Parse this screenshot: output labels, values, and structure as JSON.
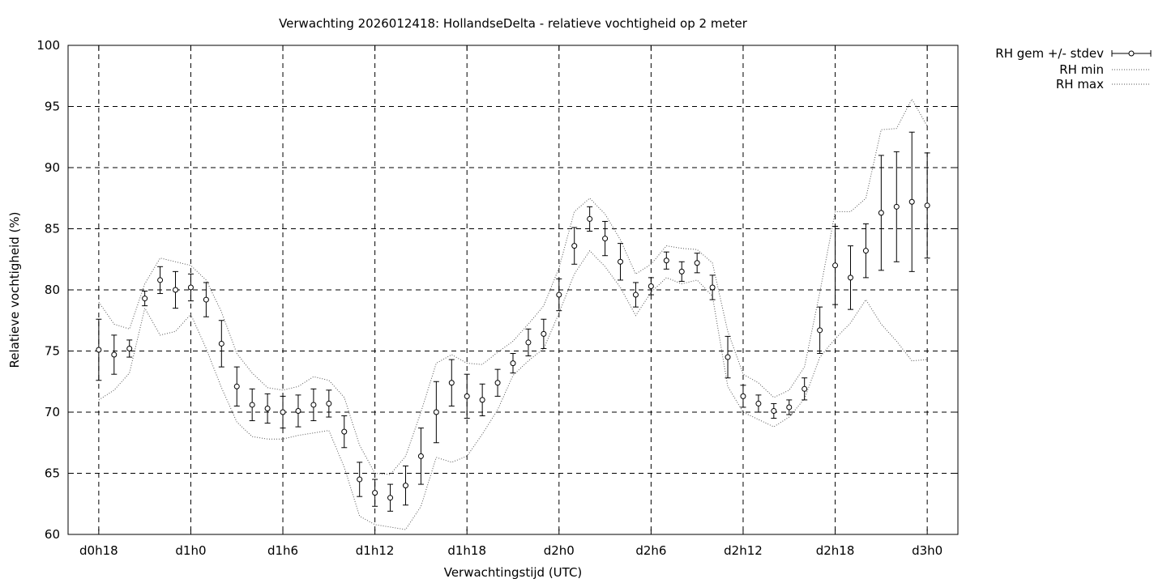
{
  "chart_data": {
    "type": "line",
    "title": "Verwachting 2026012418: HollandseDelta - relatieve vochtigheid op 2 meter",
    "xlabel": "Verwachtingstijd (UTC)",
    "ylabel": "Relatieve vochtigheid (%)",
    "ylim": [
      60,
      100
    ],
    "y_ticks": [
      60,
      65,
      70,
      75,
      80,
      85,
      90,
      95,
      100
    ],
    "x_unit": "forecast hour",
    "xlim": [
      16,
      74
    ],
    "x_ticks": [
      {
        "value": 18,
        "label": "d0h18"
      },
      {
        "value": 24,
        "label": "d1h0"
      },
      {
        "value": 30,
        "label": "d1h6"
      },
      {
        "value": 36,
        "label": "d1h12"
      },
      {
        "value": 42,
        "label": "d1h18"
      },
      {
        "value": 48,
        "label": "d2h0"
      },
      {
        "value": 54,
        "label": "d2h6"
      },
      {
        "value": 60,
        "label": "d2h12"
      },
      {
        "value": 66,
        "label": "d2h18"
      },
      {
        "value": 72,
        "label": "d3h0"
      }
    ],
    "grid": true,
    "legend_position": "top-right (outside plot)",
    "series": [
      {
        "name": "RH gem +/- stdev",
        "style": "points with error bars",
        "x": [
          18,
          19,
          20,
          21,
          22,
          23,
          24,
          25,
          26,
          27,
          28,
          29,
          30,
          31,
          32,
          33,
          34,
          35,
          36,
          37,
          38,
          39,
          40,
          41,
          42,
          43,
          44,
          45,
          46,
          47,
          48,
          49,
          50,
          51,
          52,
          53,
          54,
          55,
          56,
          57,
          58,
          59,
          60,
          61,
          62,
          63,
          64,
          65,
          66,
          67,
          68,
          69,
          70,
          71,
          72
        ],
        "mean": [
          75.1,
          74.7,
          75.2,
          79.3,
          80.8,
          80.0,
          80.2,
          79.2,
          75.6,
          72.1,
          70.6,
          70.3,
          70.0,
          70.1,
          70.6,
          70.7,
          68.4,
          64.5,
          63.4,
          63.0,
          64.0,
          66.4,
          70.0,
          72.4,
          71.3,
          71.0,
          72.4,
          74.0,
          75.7,
          76.4,
          79.6,
          83.6,
          85.8,
          84.2,
          82.3,
          79.6,
          80.3,
          82.4,
          81.5,
          82.2,
          80.2,
          74.5,
          71.3,
          70.7,
          70.1,
          70.4,
          71.9,
          76.7,
          82.0,
          81.0,
          83.2,
          86.3,
          86.8,
          87.2,
          86.9
        ],
        "stdev": [
          2.5,
          1.6,
          0.7,
          0.6,
          1.1,
          1.5,
          1.1,
          1.4,
          1.9,
          1.6,
          1.3,
          1.2,
          1.3,
          1.3,
          1.3,
          1.1,
          1.3,
          1.4,
          1.1,
          1.1,
          1.6,
          2.3,
          2.5,
          1.9,
          1.8,
          1.3,
          1.1,
          0.8,
          1.1,
          1.2,
          1.3,
          1.5,
          1.0,
          1.4,
          1.5,
          1.0,
          0.7,
          0.7,
          0.8,
          0.8,
          1.0,
          1.7,
          0.9,
          0.7,
          0.6,
          0.6,
          0.9,
          1.9,
          3.2,
          2.6,
          2.2,
          4.7,
          4.5,
          5.7,
          4.3
        ]
      },
      {
        "name": "RH min",
        "style": "dotted",
        "x": [
          18,
          19,
          20,
          21,
          22,
          23,
          24,
          25,
          26,
          27,
          28,
          29,
          30,
          31,
          32,
          33,
          34,
          35,
          36,
          37,
          38,
          39,
          40,
          41,
          42,
          43,
          44,
          45,
          46,
          47,
          48,
          49,
          50,
          51,
          52,
          53,
          54,
          55,
          56,
          57,
          58,
          59,
          60,
          61,
          62,
          63,
          64,
          65,
          66,
          67,
          68,
          69,
          70,
          71,
          72
        ],
        "values": [
          71.0,
          71.8,
          73.2,
          78.5,
          76.3,
          76.6,
          78.0,
          75.2,
          72.0,
          69.2,
          68.0,
          67.8,
          67.8,
          68.1,
          68.3,
          68.5,
          65.5,
          61.5,
          60.8,
          60.6,
          60.4,
          62.3,
          66.3,
          65.9,
          66.4,
          68.2,
          70.2,
          73.0,
          74.2,
          75.2,
          78.1,
          81.3,
          83.2,
          81.9,
          80.2,
          77.9,
          79.8,
          81.0,
          80.5,
          80.8,
          79.5,
          72.1,
          70.0,
          69.4,
          68.8,
          69.6,
          71.1,
          74.5,
          76.0,
          77.3,
          79.2,
          77.2,
          75.8,
          74.2,
          74.3
        ]
      },
      {
        "name": "RH max",
        "style": "dotted",
        "x": [
          18,
          19,
          20,
          21,
          22,
          23,
          24,
          25,
          26,
          27,
          28,
          29,
          30,
          31,
          32,
          33,
          34,
          35,
          36,
          37,
          38,
          39,
          40,
          41,
          42,
          43,
          44,
          45,
          46,
          47,
          48,
          49,
          50,
          51,
          52,
          53,
          54,
          55,
          56,
          57,
          58,
          59,
          60,
          61,
          62,
          63,
          64,
          65,
          66,
          67,
          68,
          69,
          70,
          71,
          72
        ],
        "values": [
          79.0,
          77.2,
          76.8,
          80.5,
          82.6,
          82.3,
          82.0,
          80.8,
          78.2,
          74.8,
          73.2,
          72.0,
          71.8,
          72.1,
          72.9,
          72.6,
          71.2,
          67.3,
          65.0,
          64.9,
          66.4,
          70.0,
          74.0,
          74.7,
          74.0,
          73.9,
          74.9,
          75.8,
          77.2,
          78.7,
          81.8,
          86.4,
          87.5,
          86.2,
          84.1,
          81.3,
          82.1,
          83.6,
          83.4,
          83.3,
          82.2,
          76.6,
          73.1,
          72.4,
          71.2,
          71.8,
          73.7,
          79.8,
          86.4,
          86.4,
          87.5,
          93.1,
          93.2,
          95.6,
          93.4
        ]
      }
    ]
  }
}
